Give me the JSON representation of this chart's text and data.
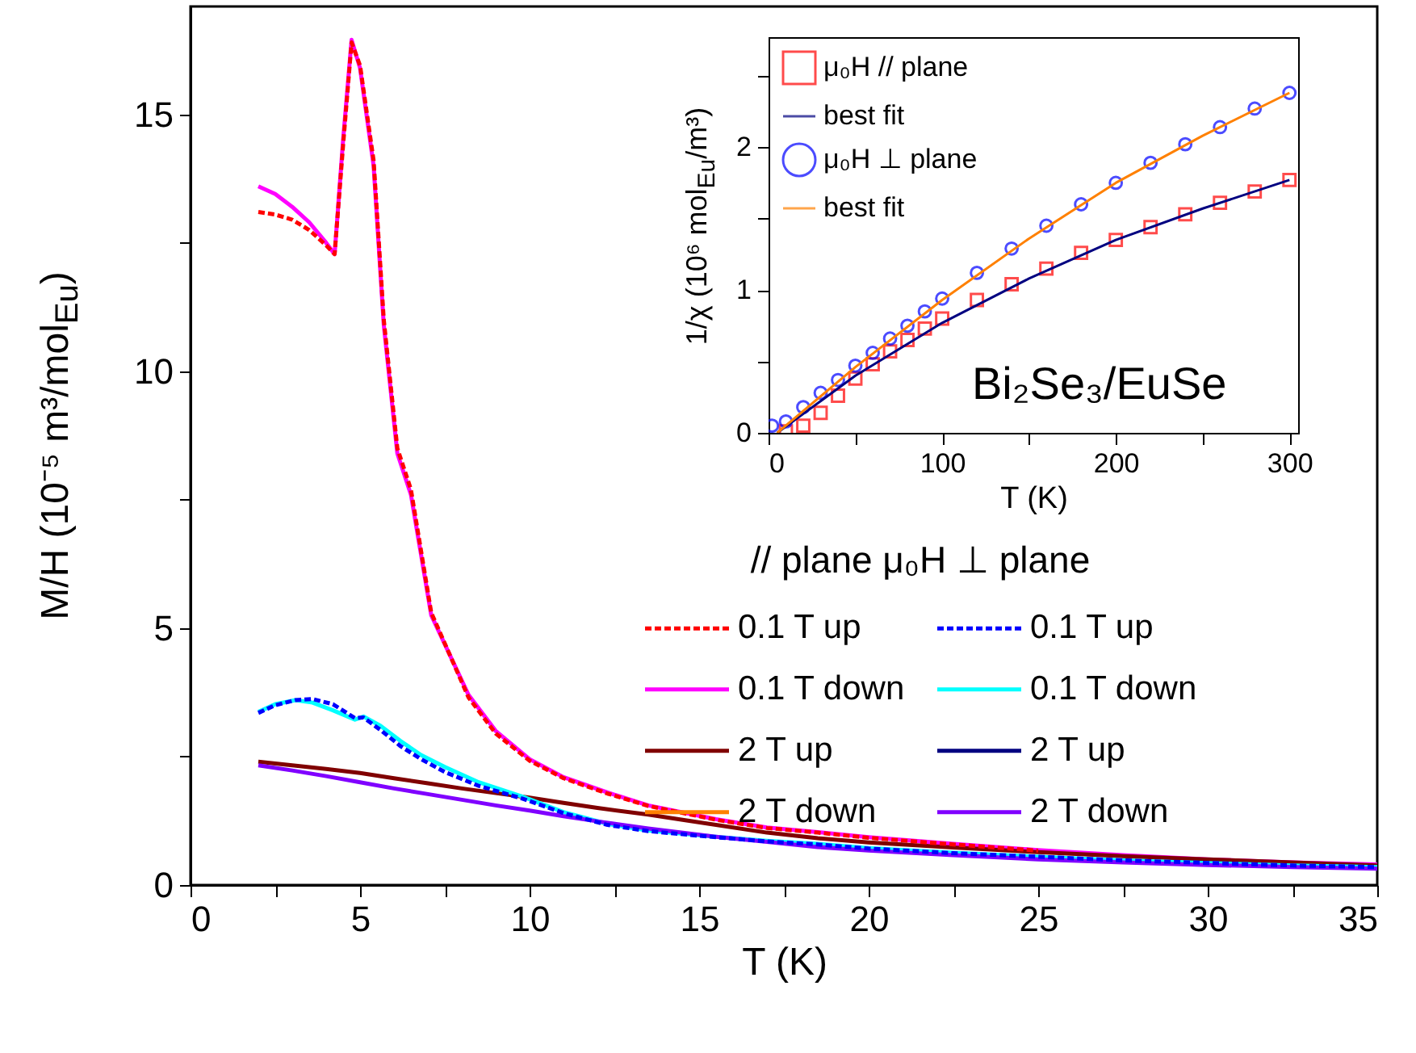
{
  "chart_data": [
    {
      "type": "line",
      "xlabel": "T (K)",
      "ylabel": "M/H (10⁻⁵ m³/mol$_{Eu}$)",
      "legend_title": "// plane   μ₀H   ⊥ plane",
      "legend": "right",
      "grid": false,
      "xlim": [
        0,
        35
      ],
      "ylim": [
        0,
        17.1
      ],
      "xticks": [
        0,
        {
          "value": 2.5,
          "label": null
        },
        5,
        {
          "value": 7.5,
          "label": null
        },
        10,
        {
          "value": 12.5,
          "label": null
        },
        15,
        {
          "value": 17.5,
          "label": null
        },
        20,
        {
          "value": 22.5,
          "label": null
        },
        25,
        {
          "value": 27.5,
          "label": null
        },
        30,
        {
          "value": 32.5,
          "label": null
        },
        35
      ],
      "yticks": [
        0,
        {
          "value": 2.5,
          "label": null
        },
        5,
        {
          "value": 7.5,
          "label": null
        },
        10,
        {
          "value": 12.5,
          "label": null
        },
        15
      ],
      "series": [
        {
          "name": "0.1 T up",
          "color": "#ff0000",
          "line_style": "dashed",
          "x": [
            2,
            2.5,
            3,
            3.5,
            4,
            4.25,
            4.5,
            4.75,
            5,
            5.4,
            5.7,
            6.1,
            6.5,
            7.1,
            8.2,
            9,
            10,
            11,
            12.3,
            13.5,
            15.5,
            17,
            18.5,
            20,
            22.5,
            25
          ],
          "values": [
            13.1,
            13.05,
            12.95,
            12.75,
            12.45,
            12.28,
            14.4,
            16.4,
            15.95,
            14.1,
            11.0,
            8.5,
            7.7,
            5.3,
            3.65,
            2.95,
            2.42,
            2.08,
            1.78,
            1.54,
            1.27,
            1.11,
            1.02,
            0.92,
            0.79,
            0.67
          ]
        },
        {
          "name": "0.1 T down",
          "color": "#ff00ff",
          "line_style": "solid",
          "x": [
            2,
            2.5,
            3,
            3.5,
            4,
            4.25,
            4.5,
            4.75,
            5,
            5.4,
            5.7,
            6.1,
            6.5,
            7.1,
            8.2,
            9,
            10,
            11,
            12.3,
            13.5,
            15.5,
            17,
            18.5,
            20,
            22.5,
            25,
            27.5,
            30,
            32.5,
            35
          ],
          "values": [
            13.6,
            13.45,
            13.2,
            12.9,
            12.5,
            12.28,
            14.5,
            16.45,
            15.9,
            14.0,
            10.9,
            8.4,
            7.6,
            5.25,
            3.7,
            3.0,
            2.45,
            2.1,
            1.8,
            1.55,
            1.28,
            1.12,
            1.03,
            0.93,
            0.8,
            0.68,
            0.58,
            0.5,
            0.44,
            0.4
          ]
        },
        {
          "name": "2 T up",
          "color": "#800000",
          "line_style": "solid",
          "x": [
            2,
            3,
            4,
            5,
            6,
            7,
            8,
            9,
            10,
            11,
            12,
            13.5,
            15.5,
            17,
            18.5,
            20,
            22.5,
            25,
            27.5,
            30,
            32.5,
            35
          ],
          "values": [
            2.4,
            2.33,
            2.26,
            2.18,
            2.08,
            1.98,
            1.88,
            1.79,
            1.7,
            1.6,
            1.5,
            1.37,
            1.17,
            1.02,
            0.91,
            0.83,
            0.73,
            0.64,
            0.56,
            0.5,
            0.44,
            0.38
          ]
        },
        {
          "name": "2 T down",
          "color": "#ff8000",
          "line_style": "solid"
        },
        {
          "name": "0.1 T up",
          "color": "#0000ff",
          "line_style": "dashed",
          "x": [
            2,
            2.5,
            3.1,
            3.6,
            4.2,
            4.85,
            5.1,
            5.6,
            6.2,
            6.8,
            7.5,
            8.5,
            9.8,
            11,
            12.3,
            13.5,
            15.5,
            17,
            18.5,
            20,
            22.5,
            25,
            27.5,
            30,
            32.5,
            35
          ],
          "values": [
            3.35,
            3.5,
            3.6,
            3.62,
            3.52,
            3.25,
            3.26,
            3.02,
            2.7,
            2.45,
            2.2,
            1.93,
            1.68,
            1.4,
            1.17,
            1.05,
            0.93,
            0.85,
            0.79,
            0.71,
            0.62,
            0.55,
            0.48,
            0.43,
            0.38,
            0.35
          ]
        },
        {
          "name": "0.1 T down",
          "color": "#00ffff",
          "line_style": "solid",
          "x": [
            2,
            2.5,
            3.1,
            3.6,
            4.2,
            4.85,
            5.1,
            5.6,
            6.2,
            6.8,
            7.5,
            8.5,
            9.8,
            11,
            12.3,
            13.5,
            15.5,
            17,
            18.5,
            20,
            22.5,
            25,
            27.5,
            30,
            32.5,
            35
          ],
          "values": [
            3.37,
            3.52,
            3.6,
            3.55,
            3.4,
            3.22,
            3.28,
            3.1,
            2.8,
            2.53,
            2.3,
            2.0,
            1.72,
            1.42,
            1.19,
            1.06,
            0.94,
            0.86,
            0.8,
            0.72,
            0.63,
            0.55,
            0.48,
            0.43,
            0.38,
            0.35
          ]
        },
        {
          "name": "2 T up",
          "color": "#000080",
          "line_style": "solid"
        },
        {
          "name": "2 T down",
          "color": "#8000ff",
          "line_style": "solid",
          "x": [
            2,
            3,
            4,
            5,
            6,
            7,
            8,
            9,
            10,
            11,
            12,
            13.5,
            15.5,
            17,
            18.5,
            20,
            22.5,
            25,
            27.5,
            30,
            32.5,
            35
          ],
          "values": [
            2.33,
            2.23,
            2.12,
            2.0,
            1.88,
            1.77,
            1.66,
            1.55,
            1.45,
            1.34,
            1.24,
            1.1,
            0.94,
            0.84,
            0.74,
            0.67,
            0.58,
            0.5,
            0.44,
            0.39,
            0.35,
            0.32
          ]
        }
      ]
    },
    {
      "type": "scatter",
      "xlabel": "T (K)",
      "ylabel": "1/χ (10⁶ mol$_{Eu}$/m³)",
      "legend": "top left",
      "grid": false,
      "annotations": [
        "Bi₂Se₃/EuSe"
      ],
      "xlim": [
        0,
        305
      ],
      "ylim": [
        0,
        2.77
      ],
      "xticks": [
        0,
        {
          "value": 50,
          "label": null
        },
        100,
        {
          "value": 150,
          "label": null
        },
        200,
        {
          "value": 250,
          "label": null
        },
        300
      ],
      "yticks": [
        0,
        {
          "value": 0.5,
          "label": null
        },
        1,
        {
          "value": 1.5,
          "label": null
        },
        2,
        {
          "value": 2.5,
          "label": null
        }
      ],
      "series": [
        {
          "name": "μ₀H // plane",
          "color": "#ff0000",
          "marker": "square",
          "x": [
            10,
            20,
            30,
            40,
            50,
            60,
            70,
            80,
            90,
            100,
            120,
            140,
            160,
            180,
            200,
            220,
            240,
            260,
            280,
            300
          ],
          "values": [
            0.01,
            0.05,
            0.14,
            0.26,
            0.38,
            0.48,
            0.57,
            0.65,
            0.73,
            0.8,
            0.93,
            1.04,
            1.15,
            1.26,
            1.35,
            1.44,
            1.53,
            1.61,
            1.69,
            1.77
          ]
        },
        {
          "name": "best fit",
          "type": "line",
          "color": "#000080",
          "x": [
            5,
            50,
            100,
            150,
            200,
            250,
            300
          ],
          "values": [
            0.0,
            0.4,
            0.77,
            1.08,
            1.35,
            1.57,
            1.77
          ]
        },
        {
          "name": "μ₀H ⊥ plane",
          "color": "#0000ff",
          "marker": "circle",
          "x": [
            2,
            10,
            20,
            30,
            40,
            50,
            60,
            70,
            80,
            90,
            100,
            120,
            140,
            160,
            180,
            200,
            220,
            240,
            260,
            280,
            300
          ],
          "values": [
            0.05,
            0.08,
            0.18,
            0.28,
            0.37,
            0.47,
            0.56,
            0.66,
            0.75,
            0.85,
            0.94,
            1.12,
            1.29,
            1.45,
            1.6,
            1.75,
            1.89,
            2.02,
            2.14,
            2.27,
            2.38
          ]
        },
        {
          "name": "best fit",
          "type": "line",
          "color": "#ff8000",
          "x": [
            5,
            50,
            100,
            150,
            200,
            250,
            300
          ],
          "values": [
            0.0,
            0.46,
            0.93,
            1.36,
            1.75,
            2.08,
            2.38
          ]
        }
      ]
    }
  ]
}
